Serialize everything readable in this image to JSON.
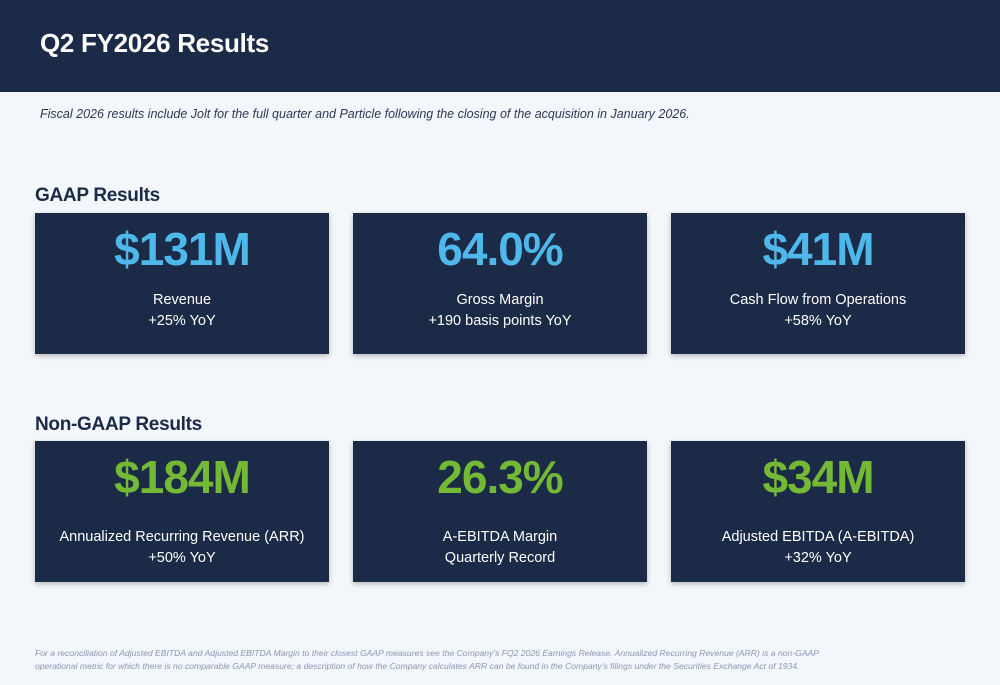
{
  "header": {
    "title": "Q2 FY2026 Results"
  },
  "subtitle": "Fiscal 2026 results include Jolt for the full quarter and Particle following the closing of the acquisition in January 2026.",
  "gaap": {
    "title": "GAAP Results",
    "cards": [
      {
        "value": "$131M",
        "label": "Revenue",
        "sublabel": "+25% YoY"
      },
      {
        "value": "64.0%",
        "label": "Gross Margin",
        "sublabel": "+190 basis points YoY"
      },
      {
        "value": "$41M",
        "label": "Cash Flow from Operations",
        "sublabel": "+58% YoY"
      }
    ]
  },
  "nongaap": {
    "title": "Non-GAAP Results",
    "cards": [
      {
        "value": "$184M",
        "label": "Annualized Recurring Revenue (ARR)",
        "sublabel": "+50% YoY"
      },
      {
        "value": "26.3%",
        "label": "A-EBITDA Margin",
        "sublabel": "Quarterly Record"
      },
      {
        "value": "$34M",
        "label": "Adjusted EBITDA (A-EBITDA)",
        "sublabel": "+32% YoY"
      }
    ]
  },
  "colors": {
    "navy": "#1b2a47",
    "gaap_value": "#4fb8ea",
    "nongaap_value": "#73b935",
    "background": "#f3f6fb"
  },
  "footnote": {
    "line1": "For a reconciliation of Adjusted EBITDA and Adjusted EBITDA Margin to their closest GAAP measures see the Company's FQ2 2026 Earnings Release. Annualized Recurring Revenue (ARR) is a non-GAAP",
    "line2": "operational metric for which there is no comparable GAAP measure; a description of how the Company calculates ARR can be found in the Company's filings under the Securities Exchange Act of 1934."
  }
}
